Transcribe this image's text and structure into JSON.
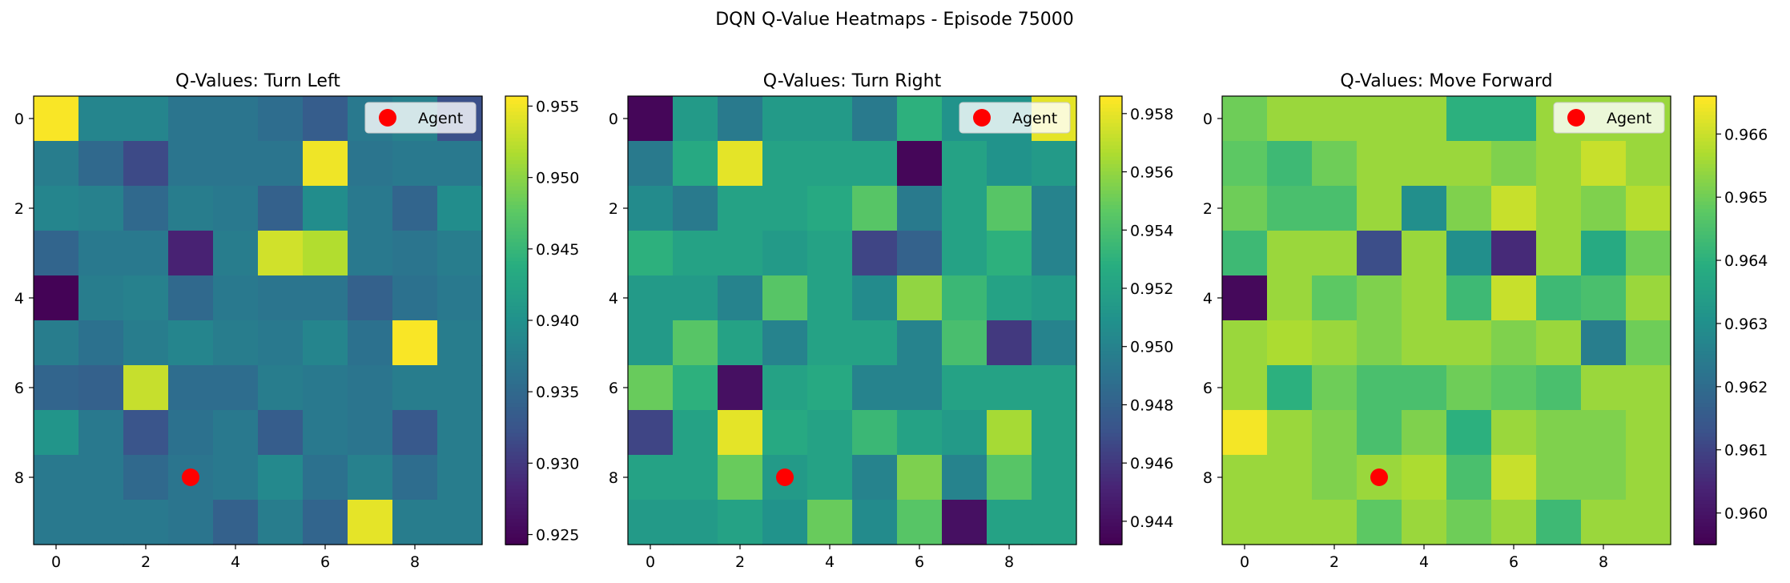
{
  "figure": {
    "suptitle": "DQN Q-Value Heatmaps - Episode 75000"
  },
  "chart_data": [
    {
      "type": "heatmap",
      "title": "Q-Values: Turn Left",
      "colormap": "viridis",
      "vmin": 0.9243,
      "vmax": 0.9557,
      "x_ticks": [
        0,
        2,
        4,
        6,
        8
      ],
      "y_ticks": [
        0,
        2,
        4,
        6,
        8
      ],
      "colorbar_ticks": [
        "0.925",
        "0.930",
        "0.935",
        "0.940",
        "0.945",
        "0.950",
        "0.955"
      ],
      "agent": {
        "x": 3,
        "y": 8
      },
      "legend": {
        "label": "Agent",
        "position": "upper right"
      },
      "values": [
        [
          0.9555,
          0.9385,
          0.9385,
          0.9365,
          0.9365,
          0.9355,
          0.9335,
          0.937,
          0.938,
          0.932
        ],
        [
          0.9375,
          0.935,
          0.9315,
          0.9365,
          0.9365,
          0.9365,
          0.955,
          0.9365,
          0.937,
          0.937
        ],
        [
          0.9385,
          0.938,
          0.935,
          0.9375,
          0.937,
          0.934,
          0.9395,
          0.937,
          0.9345,
          0.9395
        ],
        [
          0.9345,
          0.937,
          0.937,
          0.928,
          0.9375,
          0.9535,
          0.952,
          0.937,
          0.9365,
          0.9375
        ],
        [
          0.9245,
          0.9375,
          0.938,
          0.935,
          0.937,
          0.9365,
          0.9365,
          0.934,
          0.936,
          0.937
        ],
        [
          0.9375,
          0.936,
          0.9375,
          0.9385,
          0.9375,
          0.937,
          0.9385,
          0.936,
          0.9555,
          0.9375
        ],
        [
          0.9345,
          0.934,
          0.953,
          0.9355,
          0.9355,
          0.9375,
          0.937,
          0.9365,
          0.9375,
          0.9375
        ],
        [
          0.9405,
          0.937,
          0.9325,
          0.936,
          0.937,
          0.9335,
          0.937,
          0.9365,
          0.933,
          0.9375
        ],
        [
          0.937,
          0.937,
          0.935,
          0.9365,
          0.937,
          0.939,
          0.936,
          0.938,
          0.9355,
          0.9375
        ],
        [
          0.937,
          0.937,
          0.937,
          0.9365,
          0.934,
          0.9375,
          0.9345,
          0.9545,
          0.9375,
          0.9375
        ]
      ]
    },
    {
      "type": "heatmap",
      "title": "Q-Values: Turn Right",
      "colormap": "viridis",
      "vmin": 0.9432,
      "vmax": 0.9586,
      "x_ticks": [
        0,
        2,
        4,
        6,
        8
      ],
      "y_ticks": [
        0,
        2,
        4,
        6,
        8
      ],
      "colorbar_ticks": [
        "0.944",
        "0.946",
        "0.948",
        "0.950",
        "0.952",
        "0.954",
        "0.956",
        "0.958"
      ],
      "agent": {
        "x": 3,
        "y": 8
      },
      "legend": {
        "label": "Agent",
        "position": "upper right"
      },
      "values": [
        [
          0.9435,
          0.9515,
          0.9495,
          0.9515,
          0.9515,
          0.9495,
          0.953,
          0.951,
          0.951,
          0.958
        ],
        [
          0.9495,
          0.9525,
          0.958,
          0.952,
          0.952,
          0.952,
          0.9435,
          0.952,
          0.951,
          0.9515
        ],
        [
          0.9505,
          0.9495,
          0.952,
          0.952,
          0.9525,
          0.9545,
          0.9495,
          0.952,
          0.9545,
          0.95
        ],
        [
          0.953,
          0.952,
          0.952,
          0.9515,
          0.952,
          0.9465,
          0.948,
          0.952,
          0.953,
          0.95
        ],
        [
          0.9515,
          0.9515,
          0.95,
          0.9545,
          0.952,
          0.9505,
          0.956,
          0.9535,
          0.952,
          0.9515
        ],
        [
          0.9515,
          0.9545,
          0.952,
          0.95,
          0.952,
          0.952,
          0.95,
          0.954,
          0.946,
          0.95
        ],
        [
          0.955,
          0.953,
          0.944,
          0.952,
          0.9525,
          0.95,
          0.95,
          0.952,
          0.952,
          0.952
        ],
        [
          0.9465,
          0.952,
          0.958,
          0.9525,
          0.952,
          0.9535,
          0.952,
          0.9515,
          0.9565,
          0.952
        ],
        [
          0.952,
          0.952,
          0.955,
          0.9515,
          0.952,
          0.95,
          0.9555,
          0.95,
          0.9545,
          0.952
        ],
        [
          0.9515,
          0.9515,
          0.952,
          0.951,
          0.955,
          0.9505,
          0.9545,
          0.944,
          0.952,
          0.952
        ]
      ]
    },
    {
      "type": "heatmap",
      "title": "Q-Values: Move Forward",
      "colormap": "viridis",
      "vmin": 0.9595,
      "vmax": 0.9666,
      "x_ticks": [
        0,
        2,
        4,
        6,
        8
      ],
      "y_ticks": [
        0,
        2,
        4,
        6,
        8
      ],
      "colorbar_ticks": [
        "0.960",
        "0.961",
        "0.962",
        "0.963",
        "0.964",
        "0.965",
        "0.966"
      ],
      "agent": {
        "x": 3,
        "y": 8
      },
      "legend": {
        "label": "Agent",
        "position": "upper right"
      },
      "values": [
        [
          0.965,
          0.9655,
          0.9655,
          0.9655,
          0.9655,
          0.964,
          0.964,
          0.9655,
          0.9655,
          0.9655
        ],
        [
          0.9648,
          0.9643,
          0.965,
          0.9655,
          0.9655,
          0.9655,
          0.9652,
          0.9655,
          0.966,
          0.9655
        ],
        [
          0.965,
          0.9645,
          0.9645,
          0.9655,
          0.963,
          0.9652,
          0.966,
          0.9655,
          0.9652,
          0.9658
        ],
        [
          0.9643,
          0.9655,
          0.9655,
          0.9612,
          0.9655,
          0.963,
          0.9605,
          0.9655,
          0.9638,
          0.965
        ],
        [
          0.9597,
          0.9655,
          0.9648,
          0.9652,
          0.9655,
          0.9643,
          0.966,
          0.9643,
          0.9645,
          0.9655
        ],
        [
          0.9655,
          0.9657,
          0.9655,
          0.9652,
          0.9655,
          0.9655,
          0.9652,
          0.9655,
          0.9625,
          0.965
        ],
        [
          0.9655,
          0.964,
          0.965,
          0.9645,
          0.9645,
          0.965,
          0.9648,
          0.9645,
          0.9655,
          0.9655
        ],
        [
          0.9665,
          0.9655,
          0.9652,
          0.9645,
          0.9652,
          0.964,
          0.9655,
          0.9652,
          0.9652,
          0.9655
        ],
        [
          0.9655,
          0.9655,
          0.9652,
          0.9655,
          0.9657,
          0.9645,
          0.966,
          0.9652,
          0.9652,
          0.9655
        ],
        [
          0.9655,
          0.9655,
          0.9655,
          0.9648,
          0.9655,
          0.965,
          0.9655,
          0.9643,
          0.9655,
          0.9655
        ]
      ]
    }
  ]
}
